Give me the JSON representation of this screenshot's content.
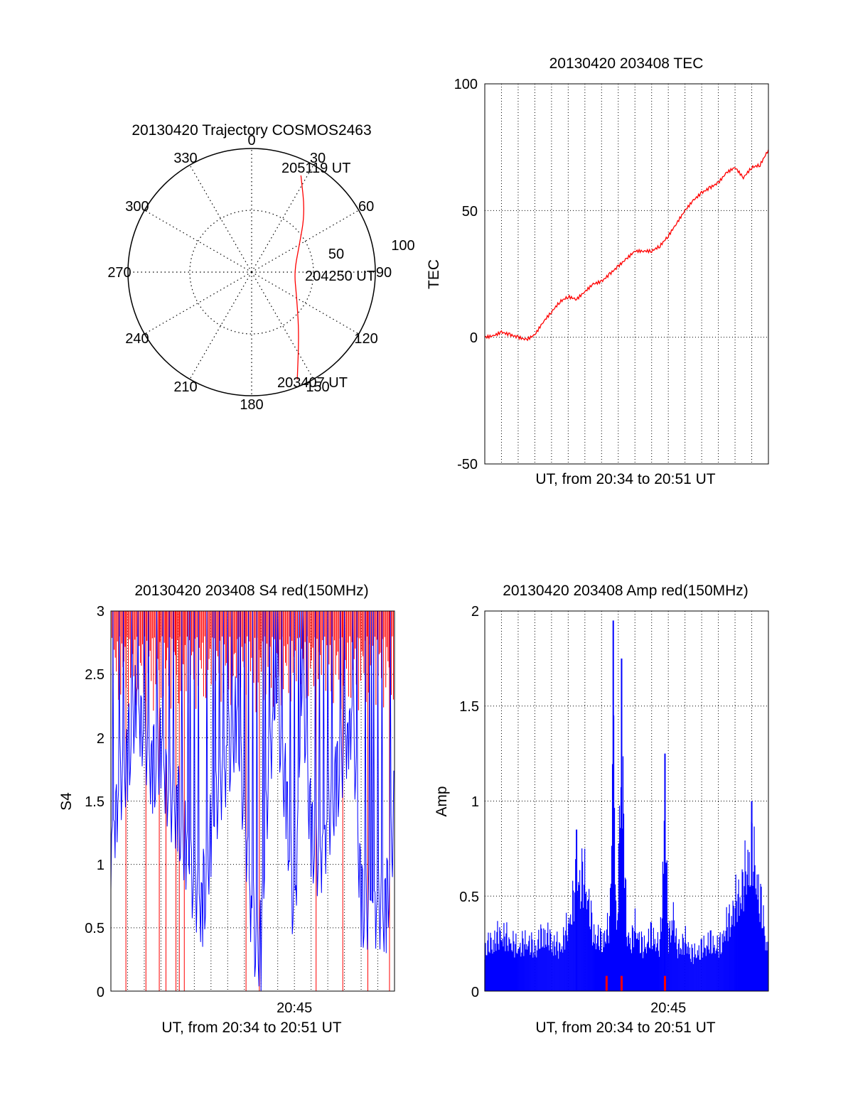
{
  "chart_data": [
    {
      "id": "trajectory",
      "type": "polar",
      "title": "20130420 Trajectory COSMOS2463",
      "angle_labels": [
        "0",
        "30",
        "60",
        "90",
        "120",
        "150",
        "180",
        "210",
        "240",
        "270",
        "300",
        "330"
      ],
      "radius_labels": [
        "50",
        "100"
      ],
      "rmax": 90,
      "rings": [
        45,
        90
      ],
      "trajectory": {
        "color": "#ff0000",
        "points": [
          {
            "az": 157,
            "r": 85
          },
          {
            "az": 142,
            "r": 56
          },
          {
            "az": 118,
            "r": 37
          },
          {
            "az": 90,
            "r": 31
          },
          {
            "az": 62,
            "r": 39
          },
          {
            "az": 42,
            "r": 58
          },
          {
            "az": 27,
            "r": 79
          }
        ]
      },
      "annotations": [
        {
          "text": "203407 UT",
          "az": 157,
          "r": 85
        },
        {
          "text": "204250 UT",
          "az": 90,
          "r": 31
        },
        {
          "text": "205119 UT",
          "az": 27,
          "r": 79
        }
      ]
    },
    {
      "id": "tec",
      "type": "line",
      "title": "20130420 203408 TEC",
      "xlabel": "UT, from 20:34 to 20:51 UT",
      "ylabel": "TEC",
      "ylim": [
        -50,
        100
      ],
      "yticks": [
        "100",
        "50",
        "0",
        "-50"
      ],
      "xlim": [
        0,
        17
      ],
      "x_grid_count": 17,
      "color": "#ff0000",
      "series": [
        {
          "x": [
            0,
            0.5,
            1,
            1.5,
            2,
            2.5,
            3,
            3.5,
            4,
            4.5,
            5,
            5.5,
            6,
            6.5,
            7,
            7.5,
            8,
            8.5,
            9,
            9.5,
            10,
            10.5,
            11,
            11.5,
            12,
            12.5,
            13,
            13.5,
            14,
            14.5,
            15,
            15.5,
            16,
            16.5,
            17
          ],
          "values": [
            0,
            0.5,
            2,
            1,
            0,
            -1,
            1,
            6,
            10,
            14,
            16,
            15,
            18,
            21,
            22,
            25,
            28,
            31,
            34,
            34,
            34,
            36,
            40,
            45,
            50,
            54,
            57,
            59,
            61,
            65,
            67,
            63,
            67,
            68,
            74
          ]
        }
      ]
    },
    {
      "id": "s4",
      "type": "line",
      "title": "20130420 203408 S4 red(150MHz)",
      "xlabel": "UT, from 20:34 to 20:51 UT",
      "ylabel": "S4",
      "ylim": [
        0,
        3
      ],
      "yticks": [
        "3",
        "2.5",
        "2",
        "1.5",
        "1",
        "0.5",
        "0"
      ],
      "xtick_label": "20:45",
      "xtick_value": 11,
      "xlim": [
        0,
        17
      ],
      "x_grid_count": 17,
      "colors": [
        "#ff0000",
        "#0000ff"
      ],
      "red_drop_x": [
        0.9,
        2.1,
        2.9,
        3.3,
        3.9,
        4.1,
        4.4,
        8.1,
        8.9,
        12.3,
        13.9,
        15.4,
        16.7
      ],
      "blue_series": {
        "x": [
          0,
          0.5,
          1,
          1.5,
          2,
          2.5,
          3,
          3.5,
          4,
          4.5,
          5,
          5.5,
          6,
          6.5,
          7,
          7.5,
          8,
          8.5,
          9,
          9.5,
          10,
          10.5,
          11,
          11.5,
          12,
          12.5,
          13,
          13.5,
          14,
          14.5,
          15,
          15.5,
          16,
          16.5,
          17
        ],
        "values": [
          1.2,
          1.7,
          1.9,
          2.4,
          2.1,
          1.8,
          2.0,
          1.6,
          1.5,
          1.2,
          0.9,
          0.75,
          1.3,
          1.7,
          1.9,
          2.2,
          1.5,
          0.55,
          0.4,
          2.0,
          2.3,
          1.6,
          0.6,
          2.5,
          1.3,
          1.1,
          1.4,
          1.7,
          2.0,
          2.3,
          0.75,
          0.72,
          0.74,
          0.7,
          1.5
        ]
      }
    },
    {
      "id": "amp",
      "type": "line",
      "title": "20130420 203408 Amp red(150MHz)",
      "xlabel": "UT, from 20:34 to 20:51 UT",
      "ylabel": "Amp",
      "ylim": [
        0,
        2
      ],
      "yticks": [
        "2",
        "1.5",
        "1",
        "0.5",
        "0"
      ],
      "xtick_label": "20:45",
      "xtick_value": 11,
      "xlim": [
        0,
        17
      ],
      "x_grid_count": 17,
      "colors": [
        "#0000ff",
        "#ff0000"
      ],
      "blue_series": {
        "x": [
          0,
          0.5,
          1,
          1.5,
          2,
          2.5,
          3,
          3.5,
          4,
          4.5,
          5,
          5.5,
          6,
          6.5,
          7,
          7.5,
          7.7,
          7.9,
          8.2,
          8.5,
          8.8,
          9.0,
          9.5,
          10,
          10.5,
          10.8,
          11.0,
          11.3,
          11.5,
          12,
          12.5,
          13,
          13.5,
          14,
          14.5,
          15,
          15.5,
          16,
          16.5,
          17
        ],
        "values": [
          0.3,
          0.35,
          0.4,
          0.35,
          0.3,
          0.35,
          0.3,
          0.4,
          0.35,
          0.3,
          0.45,
          0.75,
          0.8,
          0.4,
          0.35,
          0.45,
          1.95,
          0.3,
          1.75,
          0.4,
          0.35,
          0.45,
          0.3,
          0.4,
          0.3,
          1.25,
          0.35,
          0.55,
          0.3,
          0.35,
          0.25,
          0.3,
          0.35,
          0.3,
          0.45,
          0.6,
          0.75,
          1.0,
          0.65,
          0.25
        ]
      },
      "red_marks_x": [
        7.3,
        8.2,
        10.8
      ]
    }
  ]
}
